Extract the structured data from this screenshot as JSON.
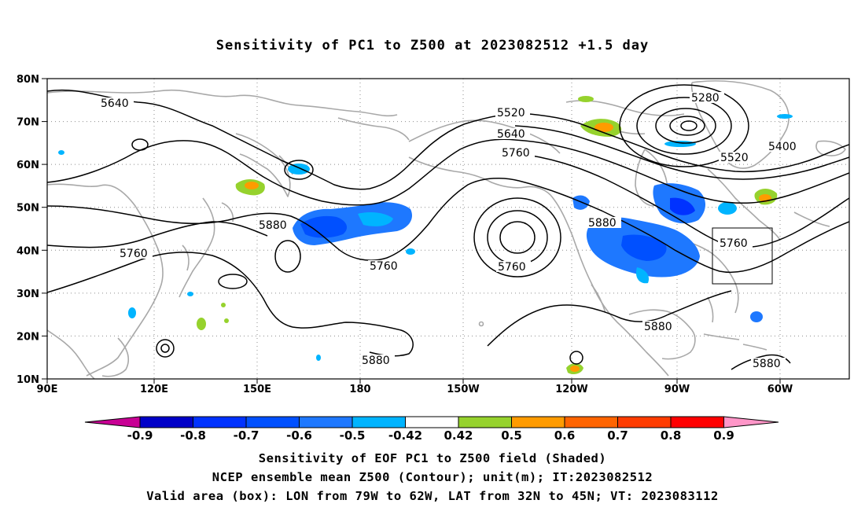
{
  "title": "Sensitivity of PC1 to Z500 at 2023082512 +1.5 day",
  "map": {
    "lat_labels": [
      "80N",
      "70N",
      "60N",
      "50N",
      "40N",
      "30N",
      "20N",
      "10N"
    ],
    "lon_labels": [
      "90E",
      "120E",
      "150E",
      "180",
      "150W",
      "120W",
      "90W",
      "60W"
    ],
    "gridlines": true,
    "coastline_color": "#a8a8a8",
    "contour_color": "#000000",
    "contour_unit": "m",
    "contour_labels": [
      {
        "text": "5640"
      },
      {
        "text": "5520"
      },
      {
        "text": "5640"
      },
      {
        "text": "5760"
      },
      {
        "text": "5280"
      },
      {
        "text": "5400"
      },
      {
        "text": "5520"
      },
      {
        "text": "5880"
      },
      {
        "text": "5760"
      },
      {
        "text": "5760"
      },
      {
        "text": "5760"
      },
      {
        "text": "5880"
      },
      {
        "text": "5760"
      },
      {
        "text": "5880"
      },
      {
        "text": "5880"
      },
      {
        "text": "5880"
      }
    ],
    "box": {
      "lon_min": "79W",
      "lon_max": "62W",
      "lat_min": "32N",
      "lat_max": "45N"
    }
  },
  "colorbar": {
    "labels": [
      "-0.9",
      "-0.8",
      "-0.7",
      "-0.6",
      "-0.5",
      "-0.42",
      "0.42",
      "0.5",
      "0.6",
      "0.7",
      "0.8",
      "0.9"
    ],
    "colors": [
      "#c80094",
      "#0000c8",
      "#0032ff",
      "#0050ff",
      "#1e78ff",
      "#00b4ff",
      "#ffffff",
      "#96d22d",
      "#ff9b00",
      "#ff6400",
      "#ff3c00",
      "#ff0000",
      "#ff96c8"
    ]
  },
  "caption": {
    "line1": "Sensitivity of EOF PC1 to Z500 field (Shaded)",
    "line2": "NCEP ensemble mean Z500 (Contour); unit(m); IT:2023082512",
    "line3": "Valid area (box): LON from 79W to 62W, LAT from 32N to 45N; VT: 2023083112"
  }
}
